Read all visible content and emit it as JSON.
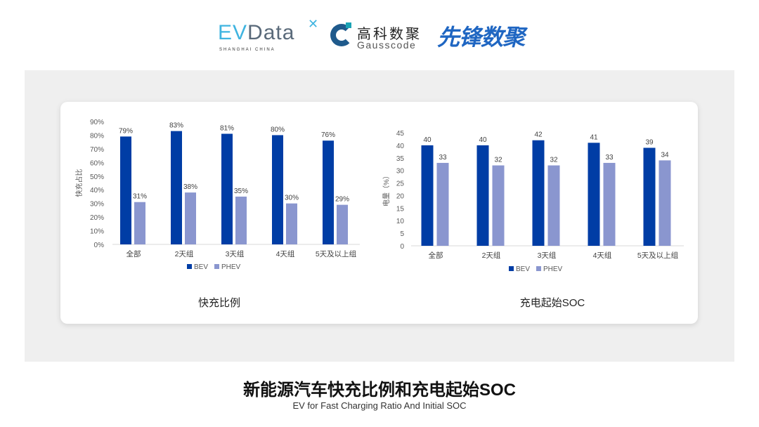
{
  "logos": {
    "evdata": {
      "ev": "EV",
      "data": "Data",
      "x": "✕",
      "sub": "SHANGHAI CHINA"
    },
    "gausscode": {
      "cn": "高科数聚",
      "en": "Gausscode"
    },
    "xianfeng": "先锋数聚"
  },
  "colors": {
    "bev": "#003da5",
    "phev": "#8a96cf",
    "panel": "#efefef"
  },
  "chart_data": [
    {
      "type": "bar",
      "title": "快充比例",
      "ylabel": "快充占比",
      "categories": [
        "全部",
        "2天组",
        "3天组",
        "4天组",
        "5天及以上组"
      ],
      "ylim": [
        0,
        90
      ],
      "yticks": [
        "0%",
        "10%",
        "20%",
        "30%",
        "40%",
        "50%",
        "60%",
        "70%",
        "80%",
        "90%"
      ],
      "grid": false,
      "legend": "bottom",
      "unit": "%",
      "series": [
        {
          "name": "BEV",
          "values": [
            79,
            83,
            81,
            80,
            76
          ]
        },
        {
          "name": "PHEV",
          "values": [
            31,
            38,
            35,
            30,
            29
          ]
        }
      ]
    },
    {
      "type": "bar",
      "title": "充电起始SOC",
      "ylabel": "电量（%）",
      "categories": [
        "全部",
        "2天组",
        "3天组",
        "4天组",
        "5天及以上组"
      ],
      "ylim": [
        0,
        45
      ],
      "yticks": [
        "0",
        "5",
        "10",
        "15",
        "20",
        "25",
        "30",
        "35",
        "40",
        "45"
      ],
      "grid": false,
      "legend": "bottom",
      "unit": "",
      "series": [
        {
          "name": "BEV",
          "values": [
            40,
            40,
            42,
            41,
            39
          ]
        },
        {
          "name": "PHEV",
          "values": [
            33,
            32,
            32,
            33,
            34
          ]
        }
      ]
    }
  ],
  "footer": {
    "title": "新能源汽车快充比例和充电起始SOC",
    "subtitle": "EV for Fast Charging Ratio And Initial SOC"
  }
}
